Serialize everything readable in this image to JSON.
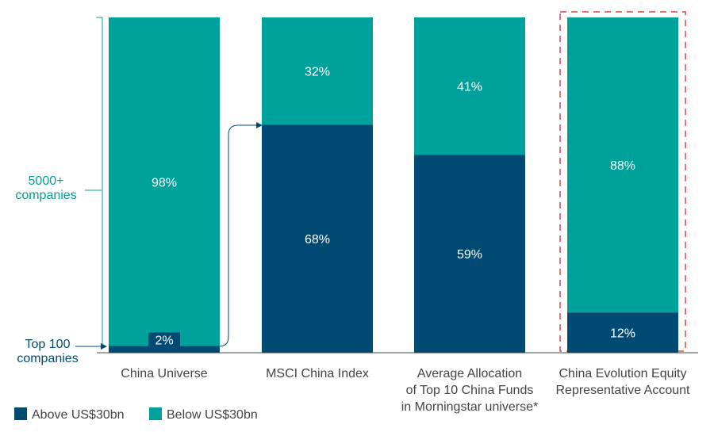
{
  "chart_data": {
    "type": "bar",
    "stacked": true,
    "normalized_percent": true,
    "categories": [
      "China Universe",
      "MSCI China Index",
      "Average Allocation of Top 10 China Funds in Morningstar universe*",
      "China Evolution Equity Representative Account"
    ],
    "category_label_lines": [
      [
        "China Universe"
      ],
      [
        "MSCI China Index"
      ],
      [
        "Average Allocation",
        "of Top 10 China Funds",
        "in Morningstar universe*"
      ],
      [
        "China Evolution Equity",
        "Representative Account"
      ]
    ],
    "series": [
      {
        "name": "Above US$30bn",
        "values": [
          2,
          68,
          59,
          12
        ],
        "labels": [
          "2%",
          "68%",
          "59%",
          "12%"
        ],
        "color": "#004a73"
      },
      {
        "name": "Below US$30bn",
        "values": [
          98,
          32,
          41,
          88
        ],
        "labels": [
          "98%",
          "32%",
          "41%",
          "88%"
        ],
        "color": "#00a19a"
      }
    ],
    "ylim": [
      0,
      100
    ],
    "legend_position": "bottom-left",
    "highlighted_category": "China Evolution Equity Representative Account",
    "annotations": {
      "bracket_label": [
        "5000+",
        "companies"
      ],
      "bottom_label": [
        "Top 100",
        "companies"
      ]
    }
  },
  "colors": {
    "above": "#004a73",
    "below": "#00a19a",
    "annotation": "#00a19a",
    "highlight_border": "#e0464f",
    "text": "#444444",
    "axis": "#444444"
  }
}
